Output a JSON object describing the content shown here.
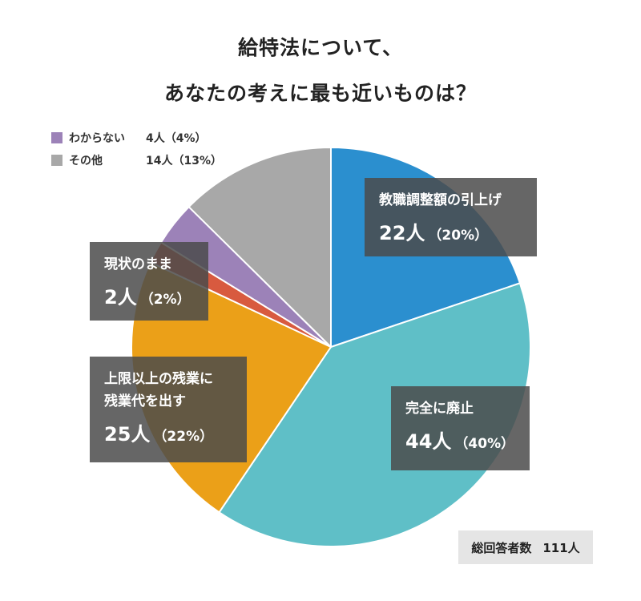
{
  "title": {
    "line1": "給特法について、",
    "line2": "あなたの考えに最も近いものは？"
  },
  "chart_data": {
    "type": "pie",
    "title": "給特法について、あなたの考えに最も近いものは？",
    "total_label": "総回答者数",
    "total_value": "111人",
    "slices": [
      {
        "label": "教職調整額の引上げ",
        "count": 22,
        "count_text": "22人",
        "percent": 20,
        "percent_text": "（20%）",
        "color": "#2b8fcf"
      },
      {
        "label": "完全に廃止",
        "count": 44,
        "count_text": "44人",
        "percent": 40,
        "percent_text": "（40%）",
        "color": "#5fbfc7"
      },
      {
        "label": "上限以上の残業に残業代を出す",
        "label_lines": [
          "上限以上の残業に",
          "残業代を出す"
        ],
        "count": 25,
        "count_text": "25人",
        "percent": 22,
        "percent_text": "（22%）",
        "color": "#eba018"
      },
      {
        "label": "現状のまま",
        "count": 2,
        "count_text": "2人",
        "percent": 2,
        "percent_text": "（2%）",
        "color": "#d85a3f"
      },
      {
        "label": "わからない",
        "count": 4,
        "count_text": "4人",
        "percent": 4,
        "percent_text": "（4%）",
        "legend_value": "4人（4%）",
        "color": "#9c82b8"
      },
      {
        "label": "その他",
        "count": 14,
        "count_text": "14人",
        "percent": 13,
        "percent_text": "（13%）",
        "legend_value": "14人（13%）",
        "color": "#a8a8a8"
      }
    ]
  }
}
